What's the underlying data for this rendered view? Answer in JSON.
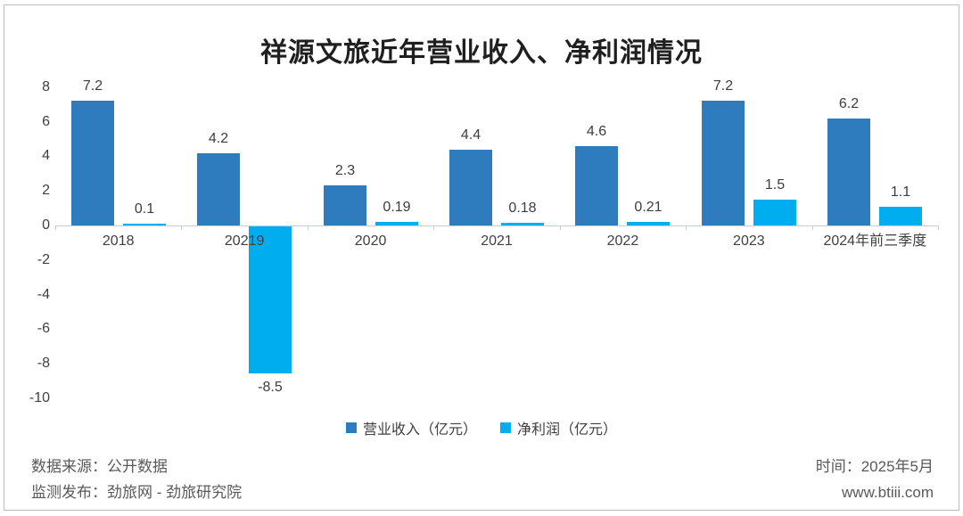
{
  "title": "祥源文旅近年营业收入、净利润情况",
  "chart_data": {
    "type": "bar",
    "categories": [
      "2018",
      "20219",
      "2020",
      "2021",
      "2022",
      "2023",
      "2024年前三季度"
    ],
    "series": [
      {
        "name": "营业收入（亿元）",
        "color": "#2e7cbd",
        "values": [
          7.2,
          4.2,
          2.3,
          4.4,
          4.6,
          7.2,
          6.2
        ]
      },
      {
        "name": "净利润（亿元）",
        "color": "#00aeef",
        "values": [
          0.1,
          -8.5,
          0.19,
          0.18,
          0.21,
          1.5,
          1.1
        ]
      }
    ],
    "ylim": [
      -10,
      8
    ],
    "yticks": [
      8,
      6,
      4,
      2,
      0,
      -2,
      -4,
      -6,
      -8,
      -10
    ],
    "grid": false,
    "legend_position": "bottom",
    "axis_color": "#c6d0dc"
  },
  "footer": {
    "source_line": "数据来源：公开数据",
    "publisher_line": "监测发布：劲旅网 - 劲旅研究院",
    "time_line": "时间：2025年5月",
    "website": "www.btiii.com"
  }
}
